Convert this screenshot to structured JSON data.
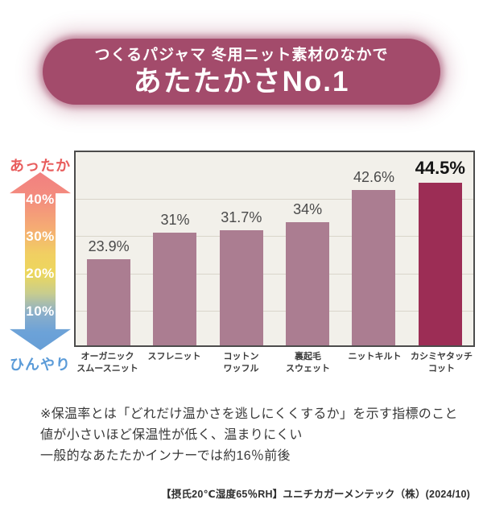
{
  "banner": {
    "subtitle": "つくるパジャマ 冬用ニット素材のなかで",
    "title": "あたたかさNo.1",
    "background_color": "#a34b6b",
    "text_color": "#ffffff"
  },
  "thermometer": {
    "top_label": "あったか",
    "bottom_label": "ひんやり",
    "top_label_color": "#e85d5d",
    "bottom_label_color": "#5b9bd8",
    "gradient_colors": [
      "#f28080",
      "#f5ab74",
      "#ecd75d",
      "#6ca2d8"
    ]
  },
  "chart_data": {
    "type": "bar",
    "title": "あたたかさNo.1",
    "subtitle": "つくるパジャマ 冬用ニット素材のなかで",
    "categories": [
      "オーガニック\nスムースニット",
      "スフレニット",
      "コットン\nワッフル",
      "裏起毛\nスウェット",
      "ニットキルト",
      "カシミヤタッチ\nコット"
    ],
    "values": [
      23.9,
      31,
      31.7,
      34,
      42.6,
      44.5
    ],
    "value_labels": [
      "23.9%",
      "31%",
      "31.7%",
      "34%",
      "42.6%",
      "44.5%"
    ],
    "highlight_index": 5,
    "y_axis": {
      "tick_labels": [
        "40%",
        "30%",
        "20%",
        "10%"
      ],
      "ylim": [
        0,
        52
      ],
      "unit": "%"
    },
    "grid": true,
    "legend": false,
    "colors": {
      "bar": "#ab7d91",
      "highlight_bar": "#9c2d55",
      "plot_background": "#f2f0ea",
      "gridline": "#d9d5ca",
      "border": "#4c4c4c"
    }
  },
  "footnote": "※保温率とは「どれだけ温かさを逃しにくくするか」を示す指標のこと\n値が小さいほど保温性が低く、温まりにくい\n一般的なあたたかインナーでは約16％前後",
  "attribution": "【摂氏20℃湿度65％RH】ユニチカガーメンテック（株）(2024/10)"
}
